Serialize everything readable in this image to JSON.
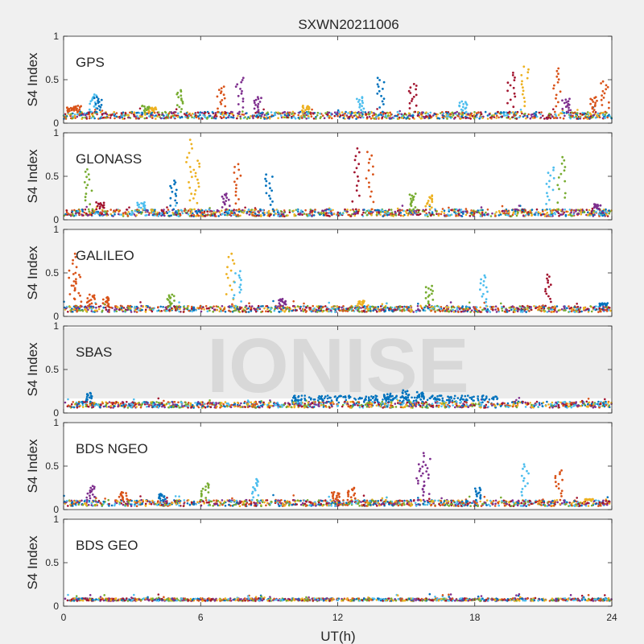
{
  "figure": {
    "title": "SXWN20211006",
    "xlabel": "UT(h)",
    "xticks": [
      "0",
      "6",
      "12",
      "18",
      "24"
    ],
    "ylabel": "S4 Index",
    "yticks": [
      "0",
      "0.5",
      "1"
    ],
    "watermark": "IONISE"
  },
  "palette": [
    "#0072bd",
    "#d95319",
    "#edb120",
    "#7e2f8e",
    "#77ac30",
    "#4dbeee",
    "#a2142f"
  ],
  "chart_data": [
    {
      "type": "scatter",
      "panel": "GPS",
      "xlim": [
        0,
        24
      ],
      "ylim": [
        0,
        1
      ],
      "baseline": [
        0.05,
        0.13
      ],
      "spikes": [
        {
          "x": 0.3,
          "y": 0.18,
          "c": 1
        },
        {
          "x": 0.6,
          "y": 0.2,
          "c": 1
        },
        {
          "x": 1.3,
          "y": 0.33,
          "c": 5
        },
        {
          "x": 1.5,
          "y": 0.3,
          "c": 0
        },
        {
          "x": 3.6,
          "y": 0.2,
          "c": 4
        },
        {
          "x": 3.9,
          "y": 0.18,
          "c": 2
        },
        {
          "x": 5.1,
          "y": 0.38,
          "c": 4
        },
        {
          "x": 6.9,
          "y": 0.42,
          "c": 1
        },
        {
          "x": 7.7,
          "y": 0.52,
          "c": 3
        },
        {
          "x": 8.5,
          "y": 0.3,
          "c": 3
        },
        {
          "x": 10.6,
          "y": 0.2,
          "c": 2
        },
        {
          "x": 13.0,
          "y": 0.3,
          "c": 5
        },
        {
          "x": 13.9,
          "y": 0.52,
          "c": 0
        },
        {
          "x": 15.3,
          "y": 0.45,
          "c": 6
        },
        {
          "x": 17.5,
          "y": 0.25,
          "c": 5
        },
        {
          "x": 19.6,
          "y": 0.58,
          "c": 6
        },
        {
          "x": 20.2,
          "y": 0.65,
          "c": 2
        },
        {
          "x": 21.6,
          "y": 0.63,
          "c": 1
        },
        {
          "x": 22.0,
          "y": 0.28,
          "c": 3
        },
        {
          "x": 23.2,
          "y": 0.3,
          "c": 1
        },
        {
          "x": 23.7,
          "y": 0.48,
          "c": 1
        }
      ]
    },
    {
      "type": "scatter",
      "panel": "GLONASS",
      "xlim": [
        0,
        24
      ],
      "ylim": [
        0,
        1
      ],
      "baseline": [
        0.04,
        0.12
      ],
      "spikes": [
        {
          "x": 1.1,
          "y": 0.58,
          "c": 4
        },
        {
          "x": 1.6,
          "y": 0.2,
          "c": 6
        },
        {
          "x": 3.4,
          "y": 0.2,
          "c": 5
        },
        {
          "x": 4.8,
          "y": 0.45,
          "c": 0
        },
        {
          "x": 5.5,
          "y": 0.92,
          "c": 2
        },
        {
          "x": 5.8,
          "y": 0.68,
          "c": 2
        },
        {
          "x": 7.1,
          "y": 0.3,
          "c": 3
        },
        {
          "x": 7.6,
          "y": 0.64,
          "c": 1
        },
        {
          "x": 9.0,
          "y": 0.52,
          "c": 0
        },
        {
          "x": 12.8,
          "y": 0.82,
          "c": 6
        },
        {
          "x": 13.4,
          "y": 0.78,
          "c": 1
        },
        {
          "x": 15.3,
          "y": 0.3,
          "c": 4
        },
        {
          "x": 16.0,
          "y": 0.28,
          "c": 2
        },
        {
          "x": 21.3,
          "y": 0.6,
          "c": 5
        },
        {
          "x": 21.8,
          "y": 0.72,
          "c": 4
        },
        {
          "x": 23.4,
          "y": 0.18,
          "c": 3
        }
      ]
    },
    {
      "type": "scatter",
      "panel": "GALILEO",
      "xlim": [
        0,
        24
      ],
      "ylim": [
        0,
        1
      ],
      "baseline": [
        0.05,
        0.12
      ],
      "spikes": [
        {
          "x": 0.4,
          "y": 0.72,
          "c": 1
        },
        {
          "x": 0.6,
          "y": 0.5,
          "c": 1
        },
        {
          "x": 1.2,
          "y": 0.25,
          "c": 1
        },
        {
          "x": 1.8,
          "y": 0.22,
          "c": 1
        },
        {
          "x": 4.7,
          "y": 0.25,
          "c": 4
        },
        {
          "x": 7.3,
          "y": 0.72,
          "c": 2
        },
        {
          "x": 7.6,
          "y": 0.52,
          "c": 5
        },
        {
          "x": 9.6,
          "y": 0.2,
          "c": 3
        },
        {
          "x": 13.0,
          "y": 0.18,
          "c": 2
        },
        {
          "x": 16.0,
          "y": 0.35,
          "c": 4
        },
        {
          "x": 18.4,
          "y": 0.47,
          "c": 5
        },
        {
          "x": 21.2,
          "y": 0.48,
          "c": 6
        },
        {
          "x": 23.6,
          "y": 0.15,
          "c": 0
        }
      ]
    },
    {
      "type": "scatter",
      "panel": "SBAS",
      "xlim": [
        0,
        24
      ],
      "ylim": [
        0,
        1
      ],
      "baseline": [
        0.06,
        0.13
      ],
      "spikes": [
        {
          "x": 1.1,
          "y": 0.23,
          "c": 0
        },
        {
          "x": 14.2,
          "y": 0.22,
          "c": 0
        },
        {
          "x": 15.0,
          "y": 0.26,
          "c": 0
        },
        {
          "x": 15.6,
          "y": 0.24,
          "c": 0
        }
      ]
    },
    {
      "type": "scatter",
      "panel": "BDS NGEO",
      "xlim": [
        0,
        24
      ],
      "ylim": [
        0,
        1
      ],
      "baseline": [
        0.04,
        0.11
      ],
      "spikes": [
        {
          "x": 1.2,
          "y": 0.27,
          "c": 3
        },
        {
          "x": 2.6,
          "y": 0.2,
          "c": 1
        },
        {
          "x": 4.3,
          "y": 0.18,
          "c": 0
        },
        {
          "x": 6.2,
          "y": 0.3,
          "c": 4
        },
        {
          "x": 8.4,
          "y": 0.35,
          "c": 5
        },
        {
          "x": 11.9,
          "y": 0.2,
          "c": 1
        },
        {
          "x": 12.6,
          "y": 0.25,
          "c": 1
        },
        {
          "x": 15.6,
          "y": 0.52,
          "c": 3
        },
        {
          "x": 15.9,
          "y": 0.65,
          "c": 3
        },
        {
          "x": 18.1,
          "y": 0.25,
          "c": 0
        },
        {
          "x": 20.2,
          "y": 0.52,
          "c": 5
        },
        {
          "x": 21.7,
          "y": 0.45,
          "c": 1
        },
        {
          "x": 23.0,
          "y": 0.12,
          "c": 2
        }
      ]
    },
    {
      "type": "scatter",
      "panel": "BDS GEO",
      "xlim": [
        0,
        24
      ],
      "ylim": [
        0,
        1
      ],
      "baseline": [
        0.06,
        0.09
      ],
      "spikes": []
    }
  ]
}
